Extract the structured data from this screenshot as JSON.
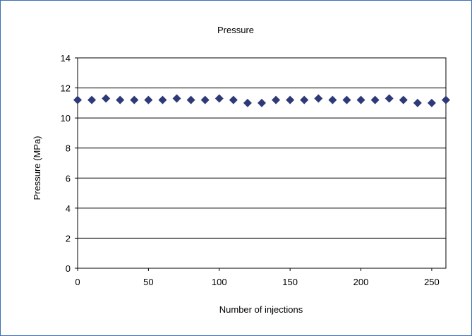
{
  "chart_data": {
    "type": "scatter",
    "title": "Pressure",
    "xlabel": "Number of injections",
    "ylabel": "Pressure (MPa)",
    "xlim": [
      0,
      260
    ],
    "ylim": [
      0,
      14
    ],
    "x_ticks": [
      "0",
      "50",
      "100",
      "150",
      "200",
      "250"
    ],
    "y_ticks": [
      "0",
      "2",
      "4",
      "6",
      "8",
      "10",
      "12",
      "14"
    ],
    "grid": "horizontal",
    "marker": "diamond",
    "marker_color": "#2e3a78",
    "frame_color": "#3a6fb0",
    "series": [
      {
        "x": [
          0,
          10,
          20,
          30,
          40,
          50,
          60,
          70,
          80,
          90,
          100,
          110,
          120,
          130,
          140,
          150,
          160,
          170,
          180,
          190,
          200,
          210,
          220,
          230,
          240,
          250,
          260
        ],
        "y": [
          11.2,
          11.2,
          11.3,
          11.2,
          11.2,
          11.2,
          11.2,
          11.3,
          11.2,
          11.2,
          11.3,
          11.2,
          11.0,
          11.0,
          11.2,
          11.2,
          11.2,
          11.3,
          11.2,
          11.2,
          11.2,
          11.2,
          11.3,
          11.2,
          11.0,
          11.0,
          11.2
        ]
      }
    ]
  }
}
